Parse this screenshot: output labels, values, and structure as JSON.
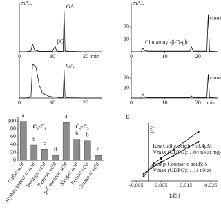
{
  "chart_data": [
    {
      "type": "line",
      "ylabel": "mAU",
      "xlabel": "min",
      "xlim": [
        0,
        25
      ],
      "ylim": [
        0,
        110
      ],
      "xticks": [
        0,
        10,
        20
      ],
      "x": [
        0,
        2,
        3.5,
        4,
        4.5,
        5,
        6,
        10,
        10.8,
        11.2,
        12,
        13.2,
        13.5,
        13.8,
        15,
        20,
        25
      ],
      "values": [
        0,
        0,
        2,
        20,
        6,
        3,
        1,
        1,
        14,
        2,
        1,
        1,
        100,
        2,
        1,
        0,
        0
      ],
      "annotations": [
        {
          "text": "βG",
          "x": 10.8
        },
        {
          "text": "GA",
          "x": 13.5
        }
      ]
    },
    {
      "type": "line",
      "xlim": [
        0,
        25
      ],
      "ylim": [
        0,
        110
      ],
      "xticks": [
        0,
        10,
        20
      ],
      "x": [
        0,
        2,
        3.5,
        4,
        4.5,
        5,
        6,
        7,
        9,
        12,
        13.2,
        13.5,
        13.8,
        15,
        20,
        25
      ],
      "values": [
        0,
        0,
        3,
        105,
        100,
        95,
        40,
        15,
        5,
        2,
        2,
        85,
        3,
        1,
        0,
        0
      ],
      "annotations": [
        {
          "text": "GA",
          "x": 13.5
        }
      ]
    },
    {
      "type": "line",
      "ylabel": "mAU",
      "xlim": [
        0,
        26
      ],
      "ylim": [
        0,
        36
      ],
      "yticks": [
        10,
        20
      ],
      "xticks": [
        0,
        10,
        20
      ],
      "x": [
        0,
        3,
        3.5,
        4,
        5,
        10,
        17.5,
        18,
        18.5,
        22.6,
        23,
        23.4,
        26
      ],
      "values": [
        0,
        0,
        3,
        1,
        0.5,
        0.5,
        0.5,
        4,
        0.5,
        0.5,
        30,
        0.5,
        0
      ],
      "annotations": [
        {
          "text": "Cinnamoyl-β-D-glc",
          "x": 18
        },
        {
          "text": "cinnamic acid",
          "x": 23
        }
      ]
    },
    {
      "type": "line",
      "xlabel": "min",
      "xlim": [
        0,
        26
      ],
      "ylim": [
        0,
        36
      ],
      "yticks": [
        10,
        20
      ],
      "xticks": [
        0,
        10,
        20
      ],
      "x": [
        0,
        3,
        3.5,
        4,
        5,
        10,
        17.5,
        18,
        18.5,
        22.6,
        23,
        23.4,
        26
      ],
      "values": [
        0,
        0,
        4,
        1,
        0.5,
        0.5,
        0.5,
        2,
        0.5,
        0.5,
        24,
        0.5,
        0
      ],
      "annotations": [
        {
          "text": "cinnamic acid",
          "x": 23
        }
      ]
    },
    {
      "type": "bar",
      "color": "#8c8c8c",
      "ylim": [
        0,
        110
      ],
      "yticks": [
        0,
        20,
        40,
        60,
        80,
        100
      ],
      "categories": [
        "Gallic acid",
        "Hydroxybenzoic acid",
        "Syringic acid",
        "Benzoic acid",
        "p-Coumaric acid",
        "Sinapic acid",
        "Ferulic acid",
        "Cinnamic acid"
      ],
      "values": [
        100,
        39,
        28,
        12,
        97,
        54,
        50,
        12
      ],
      "letters": [
        "a",
        "b",
        "c",
        "d",
        "a",
        "b",
        "b",
        "d"
      ],
      "annotations": [
        "C₆-C₁",
        "C₆-C₃"
      ]
    },
    {
      "type": "scatter",
      "label": "C",
      "ylabel": "1/V",
      "xlabel": "1/IS1",
      "xlim": [
        -0.007,
        0.028
      ],
      "ylim": [
        0,
        8
      ],
      "xticks": [
        -0.005,
        0.005,
        0.015,
        0.025
      ],
      "series": [
        {
          "color": "#111",
          "x": [
            -0.002,
            0.002,
            0.005,
            0.01,
            0.02
          ],
          "values": [
            0.6,
            2.4,
            3.1,
            4.3,
            6.8
          ]
        },
        {
          "color": "#111",
          "x": [
            -0.002,
            0.002,
            0.005,
            0.01,
            0.02
          ],
          "values": [
            1.0,
            2.0,
            2.6,
            3.5,
            5.4
          ]
        }
      ],
      "annotations": [
        "Km(Gallic acid): 758.4μM",
        "Vmax (UDPG): 1.04 nKat mg-1",
        "Km(p-Coumaric acid): 5",
        "Vmax (UDPG): 1.11 nKat"
      ]
    }
  ]
}
